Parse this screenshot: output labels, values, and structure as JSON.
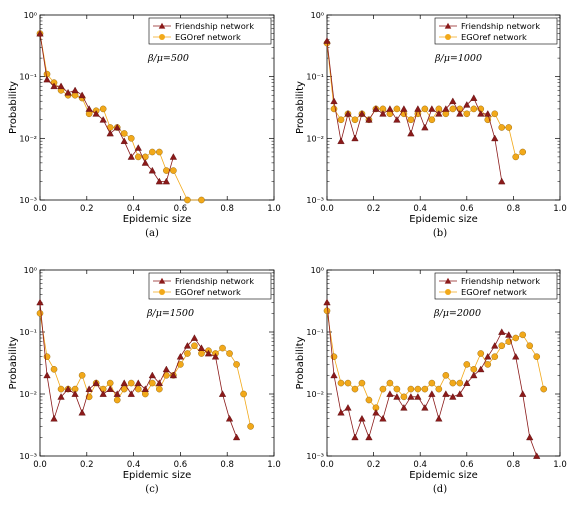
{
  "chart_data": [
    {
      "type": "line",
      "panel_label": "(a)",
      "annotation": "β/μ=500",
      "xlabel": "Epidemic size",
      "ylabel": "Probability",
      "xlim": [
        0,
        1.0
      ],
      "ylim": [
        0.001,
        1
      ],
      "yscale": "log",
      "x_ticks": [
        "0.0",
        "0.2",
        "0.4",
        "0.6",
        "0.8",
        "1.0"
      ],
      "y_ticks": [
        "10⁻³",
        "10⁻²",
        "10⁻¹",
        "10⁰"
      ],
      "legend_position": "top-right",
      "series": [
        {
          "name": "Friendship network",
          "marker": "triangle",
          "color": "#8b1a1a",
          "x": [
            0.0,
            0.03,
            0.06,
            0.09,
            0.12,
            0.15,
            0.18,
            0.21,
            0.24,
            0.27,
            0.3,
            0.33,
            0.36,
            0.39,
            0.42,
            0.45,
            0.48,
            0.51,
            0.54,
            0.57
          ],
          "y": [
            0.5,
            0.09,
            0.07,
            0.07,
            0.055,
            0.06,
            0.05,
            0.03,
            0.025,
            0.02,
            0.012,
            0.015,
            0.009,
            0.005,
            0.007,
            0.004,
            0.003,
            0.002,
            0.002,
            0.005
          ]
        },
        {
          "name": "EGOref network",
          "marker": "circle",
          "color": "#f2a91a",
          "x": [
            0.0,
            0.03,
            0.06,
            0.09,
            0.12,
            0.15,
            0.18,
            0.21,
            0.24,
            0.27,
            0.3,
            0.33,
            0.36,
            0.39,
            0.42,
            0.45,
            0.48,
            0.51,
            0.54,
            0.57,
            0.63,
            0.69
          ],
          "y": [
            0.5,
            0.11,
            0.08,
            0.06,
            0.05,
            0.05,
            0.045,
            0.025,
            0.028,
            0.03,
            0.015,
            0.015,
            0.012,
            0.01,
            0.005,
            0.005,
            0.006,
            0.006,
            0.003,
            0.003,
            0.001,
            0.001
          ]
        }
      ]
    },
    {
      "type": "line",
      "panel_label": "(b)",
      "annotation": "β/μ=1000",
      "xlabel": "Epidemic size",
      "ylabel": "Probability",
      "xlim": [
        0,
        1.0
      ],
      "ylim": [
        0.001,
        1
      ],
      "yscale": "log",
      "x_ticks": [
        "0.0",
        "0.2",
        "0.4",
        "0.6",
        "0.8",
        "1.0"
      ],
      "y_ticks": [
        "10⁻³",
        "10⁻²",
        "10⁻¹",
        "10⁰"
      ],
      "legend_position": "top-right",
      "series": [
        {
          "name": "Friendship network",
          "marker": "triangle",
          "color": "#8b1a1a",
          "x": [
            0.0,
            0.03,
            0.06,
            0.09,
            0.12,
            0.15,
            0.18,
            0.21,
            0.24,
            0.27,
            0.3,
            0.33,
            0.36,
            0.39,
            0.42,
            0.45,
            0.48,
            0.51,
            0.54,
            0.57,
            0.6,
            0.63,
            0.66,
            0.69,
            0.72,
            0.75
          ],
          "y": [
            0.38,
            0.04,
            0.009,
            0.025,
            0.01,
            0.025,
            0.02,
            0.03,
            0.025,
            0.03,
            0.02,
            0.03,
            0.012,
            0.03,
            0.015,
            0.03,
            0.025,
            0.03,
            0.04,
            0.025,
            0.035,
            0.045,
            0.025,
            0.025,
            0.01,
            0.002
          ]
        },
        {
          "name": "EGOref network",
          "marker": "circle",
          "color": "#f2a91a",
          "x": [
            0.0,
            0.03,
            0.06,
            0.09,
            0.12,
            0.15,
            0.18,
            0.21,
            0.24,
            0.27,
            0.3,
            0.33,
            0.36,
            0.39,
            0.42,
            0.45,
            0.48,
            0.51,
            0.54,
            0.57,
            0.6,
            0.63,
            0.66,
            0.69,
            0.72,
            0.75,
            0.78,
            0.81,
            0.84
          ],
          "y": [
            0.35,
            0.03,
            0.02,
            0.025,
            0.02,
            0.025,
            0.02,
            0.03,
            0.03,
            0.025,
            0.03,
            0.025,
            0.02,
            0.025,
            0.03,
            0.02,
            0.03,
            0.025,
            0.03,
            0.03,
            0.025,
            0.03,
            0.03,
            0.02,
            0.025,
            0.015,
            0.015,
            0.005,
            0.006
          ]
        }
      ]
    },
    {
      "type": "line",
      "panel_label": "(c)",
      "annotation": "β/μ=1500",
      "xlabel": "Epidemic size",
      "ylabel": "Probability",
      "xlim": [
        0,
        1.0
      ],
      "ylim": [
        0.001,
        1
      ],
      "yscale": "log",
      "x_ticks": [
        "0.0",
        "0.2",
        "0.4",
        "0.6",
        "0.8",
        "1.0"
      ],
      "y_ticks": [
        "10⁻³",
        "10⁻²",
        "10⁻¹",
        "10⁰"
      ],
      "legend_position": "top-right",
      "series": [
        {
          "name": "Friendship network",
          "marker": "triangle",
          "color": "#8b1a1a",
          "x": [
            0.0,
            0.03,
            0.06,
            0.09,
            0.12,
            0.15,
            0.18,
            0.21,
            0.24,
            0.27,
            0.3,
            0.33,
            0.36,
            0.39,
            0.42,
            0.45,
            0.48,
            0.51,
            0.54,
            0.57,
            0.6,
            0.63,
            0.66,
            0.69,
            0.72,
            0.75,
            0.78,
            0.81,
            0.84
          ],
          "y": [
            0.3,
            0.02,
            0.004,
            0.009,
            0.012,
            0.01,
            0.005,
            0.012,
            0.015,
            0.01,
            0.012,
            0.01,
            0.015,
            0.01,
            0.015,
            0.012,
            0.02,
            0.015,
            0.025,
            0.02,
            0.04,
            0.06,
            0.08,
            0.055,
            0.045,
            0.04,
            0.01,
            0.004,
            0.002
          ]
        },
        {
          "name": "EGOref network",
          "marker": "circle",
          "color": "#f2a91a",
          "x": [
            0.0,
            0.03,
            0.06,
            0.09,
            0.12,
            0.15,
            0.18,
            0.21,
            0.24,
            0.27,
            0.3,
            0.33,
            0.36,
            0.39,
            0.42,
            0.45,
            0.48,
            0.51,
            0.54,
            0.57,
            0.6,
            0.63,
            0.66,
            0.69,
            0.72,
            0.75,
            0.78,
            0.81,
            0.84,
            0.87,
            0.9
          ],
          "y": [
            0.2,
            0.04,
            0.025,
            0.012,
            0.012,
            0.012,
            0.02,
            0.009,
            0.015,
            0.012,
            0.015,
            0.008,
            0.012,
            0.015,
            0.012,
            0.01,
            0.015,
            0.012,
            0.02,
            0.02,
            0.03,
            0.045,
            0.06,
            0.045,
            0.05,
            0.045,
            0.055,
            0.045,
            0.03,
            0.01,
            0.003
          ]
        }
      ]
    },
    {
      "type": "line",
      "panel_label": "(d)",
      "annotation": "β/μ=2000",
      "xlabel": "Epidemic size",
      "ylabel": "Probability",
      "xlim": [
        0,
        1.0
      ],
      "ylim": [
        0.001,
        1
      ],
      "yscale": "log",
      "x_ticks": [
        "0.0",
        "0.2",
        "0.4",
        "0.6",
        "0.8",
        "1.0"
      ],
      "y_ticks": [
        "10⁻³",
        "10⁻²",
        "10⁻¹",
        "10⁰"
      ],
      "legend_position": "top-right",
      "series": [
        {
          "name": "Friendship network",
          "marker": "triangle",
          "color": "#8b1a1a",
          "x": [
            0.0,
            0.03,
            0.06,
            0.09,
            0.12,
            0.15,
            0.18,
            0.21,
            0.24,
            0.27,
            0.3,
            0.33,
            0.36,
            0.39,
            0.42,
            0.45,
            0.48,
            0.51,
            0.54,
            0.57,
            0.6,
            0.63,
            0.66,
            0.69,
            0.72,
            0.75,
            0.78,
            0.81,
            0.84,
            0.87,
            0.9
          ],
          "y": [
            0.3,
            0.02,
            0.005,
            0.006,
            0.002,
            0.004,
            0.002,
            0.005,
            0.004,
            0.01,
            0.009,
            0.006,
            0.009,
            0.009,
            0.006,
            0.01,
            0.004,
            0.01,
            0.009,
            0.01,
            0.015,
            0.02,
            0.025,
            0.04,
            0.06,
            0.1,
            0.09,
            0.04,
            0.01,
            0.002,
            0.001
          ]
        },
        {
          "name": "EGOref network",
          "marker": "circle",
          "color": "#f2a91a",
          "x": [
            0.0,
            0.03,
            0.06,
            0.09,
            0.12,
            0.15,
            0.18,
            0.21,
            0.24,
            0.27,
            0.3,
            0.33,
            0.36,
            0.39,
            0.42,
            0.45,
            0.48,
            0.51,
            0.54,
            0.57,
            0.6,
            0.63,
            0.66,
            0.69,
            0.72,
            0.75,
            0.78,
            0.81,
            0.84,
            0.87,
            0.9,
            0.93
          ],
          "y": [
            0.22,
            0.04,
            0.015,
            0.015,
            0.012,
            0.015,
            0.008,
            0.006,
            0.012,
            0.015,
            0.012,
            0.009,
            0.012,
            0.012,
            0.012,
            0.015,
            0.012,
            0.02,
            0.015,
            0.015,
            0.03,
            0.025,
            0.045,
            0.03,
            0.04,
            0.06,
            0.07,
            0.08,
            0.09,
            0.06,
            0.04,
            0.012
          ]
        }
      ]
    }
  ]
}
